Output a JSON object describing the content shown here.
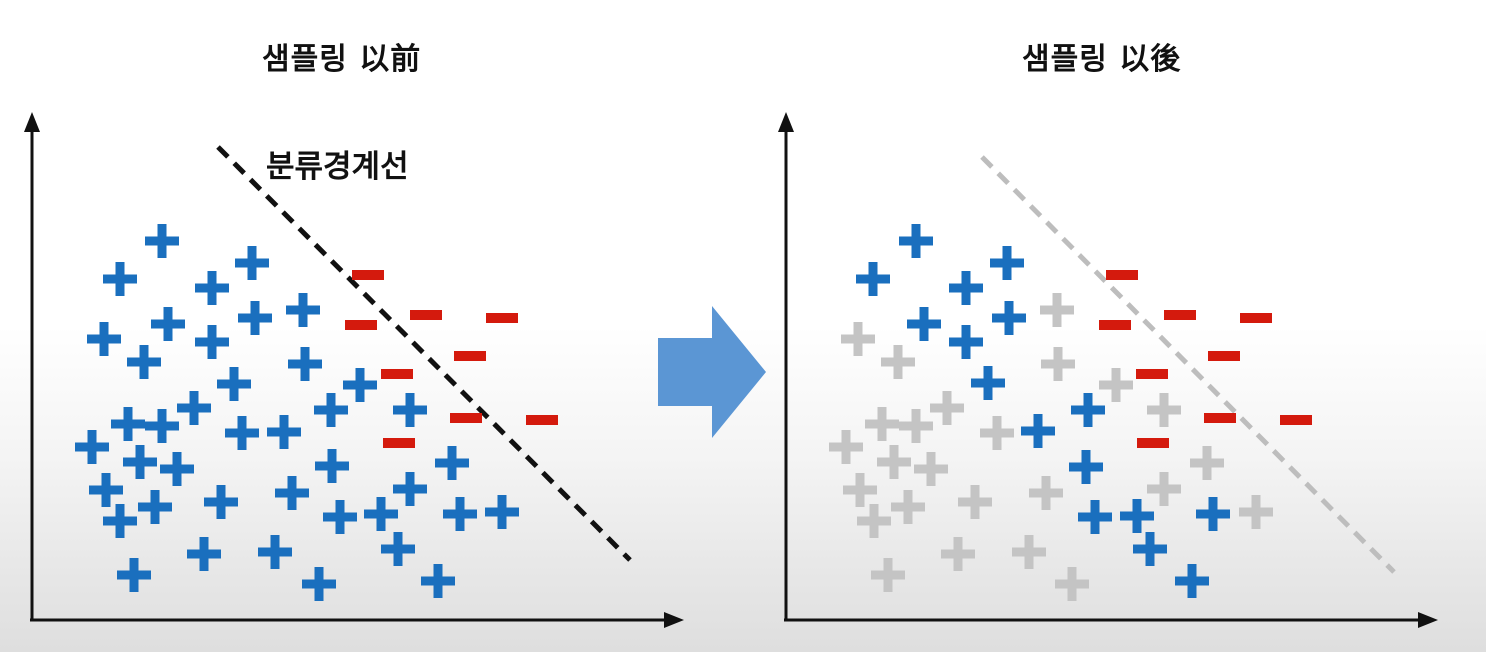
{
  "titles": {
    "before": "샘플링 以前",
    "after": "샘플링 以後"
  },
  "boundary_label": "분류경계선",
  "colors": {
    "plus_active": "#1a6fbe",
    "plus_removed": "#c4c4c4",
    "minus": "#d41a0d",
    "boundary_before": "#111111",
    "boundary_after": "#bdbdbd",
    "arrow": "#5b96d4",
    "axis": "#111111"
  },
  "before": {
    "plus": [
      [
        162,
        241
      ],
      [
        120,
        279
      ],
      [
        252,
        263
      ],
      [
        212,
        288
      ],
      [
        104,
        339
      ],
      [
        168,
        324
      ],
      [
        255,
        318
      ],
      [
        303,
        310
      ],
      [
        144,
        362
      ],
      [
        212,
        342
      ],
      [
        305,
        364
      ],
      [
        234,
        384
      ],
      [
        360,
        385
      ],
      [
        194,
        408
      ],
      [
        331,
        410
      ],
      [
        410,
        410
      ],
      [
        128,
        424
      ],
      [
        162,
        426
      ],
      [
        92,
        447
      ],
      [
        242,
        433
      ],
      [
        284,
        432
      ],
      [
        140,
        462
      ],
      [
        177,
        469
      ],
      [
        332,
        466
      ],
      [
        452,
        463
      ],
      [
        106,
        490
      ],
      [
        221,
        502
      ],
      [
        292,
        493
      ],
      [
        410,
        489
      ],
      [
        155,
        507
      ],
      [
        120,
        521
      ],
      [
        340,
        517
      ],
      [
        381,
        514
      ],
      [
        460,
        514
      ],
      [
        502,
        512
      ],
      [
        398,
        549
      ],
      [
        204,
        554
      ],
      [
        275,
        552
      ],
      [
        134,
        575
      ],
      [
        319,
        584
      ],
      [
        438,
        581
      ]
    ],
    "minus": [
      [
        368,
        275
      ],
      [
        426,
        315
      ],
      [
        502,
        318
      ],
      [
        361,
        325
      ],
      [
        470,
        356
      ],
      [
        397,
        374
      ],
      [
        466,
        418
      ],
      [
        542,
        420
      ],
      [
        399,
        443
      ]
    ]
  },
  "after": {
    "plus_active": [
      [
        916,
        241
      ],
      [
        873,
        279
      ],
      [
        1007,
        263
      ],
      [
        966,
        288
      ],
      [
        924,
        324
      ],
      [
        1009,
        318
      ],
      [
        966,
        342
      ],
      [
        988,
        383
      ],
      [
        1088,
        410
      ],
      [
        1038,
        431
      ],
      [
        1086,
        467
      ],
      [
        1095,
        517
      ],
      [
        1137,
        516
      ],
      [
        1213,
        514
      ],
      [
        1150,
        549
      ],
      [
        1192,
        581
      ]
    ],
    "plus_removed": [
      [
        1057,
        310
      ],
      [
        858,
        339
      ],
      [
        898,
        362
      ],
      [
        1058,
        364
      ],
      [
        1116,
        385
      ],
      [
        947,
        408
      ],
      [
        1164,
        410
      ],
      [
        882,
        424
      ],
      [
        916,
        426
      ],
      [
        846,
        447
      ],
      [
        997,
        433
      ],
      [
        894,
        462
      ],
      [
        931,
        469
      ],
      [
        1207,
        463
      ],
      [
        860,
        490
      ],
      [
        975,
        502
      ],
      [
        1046,
        493
      ],
      [
        1164,
        489
      ],
      [
        908,
        507
      ],
      [
        874,
        521
      ],
      [
        1256,
        512
      ],
      [
        958,
        554
      ],
      [
        1029,
        552
      ],
      [
        888,
        575
      ],
      [
        1072,
        584
      ]
    ],
    "minus": [
      [
        1122,
        275
      ],
      [
        1180,
        315
      ],
      [
        1256,
        318
      ],
      [
        1115,
        325
      ],
      [
        1224,
        356
      ],
      [
        1152,
        374
      ],
      [
        1220,
        418
      ],
      [
        1296,
        420
      ],
      [
        1153,
        443
      ]
    ]
  }
}
